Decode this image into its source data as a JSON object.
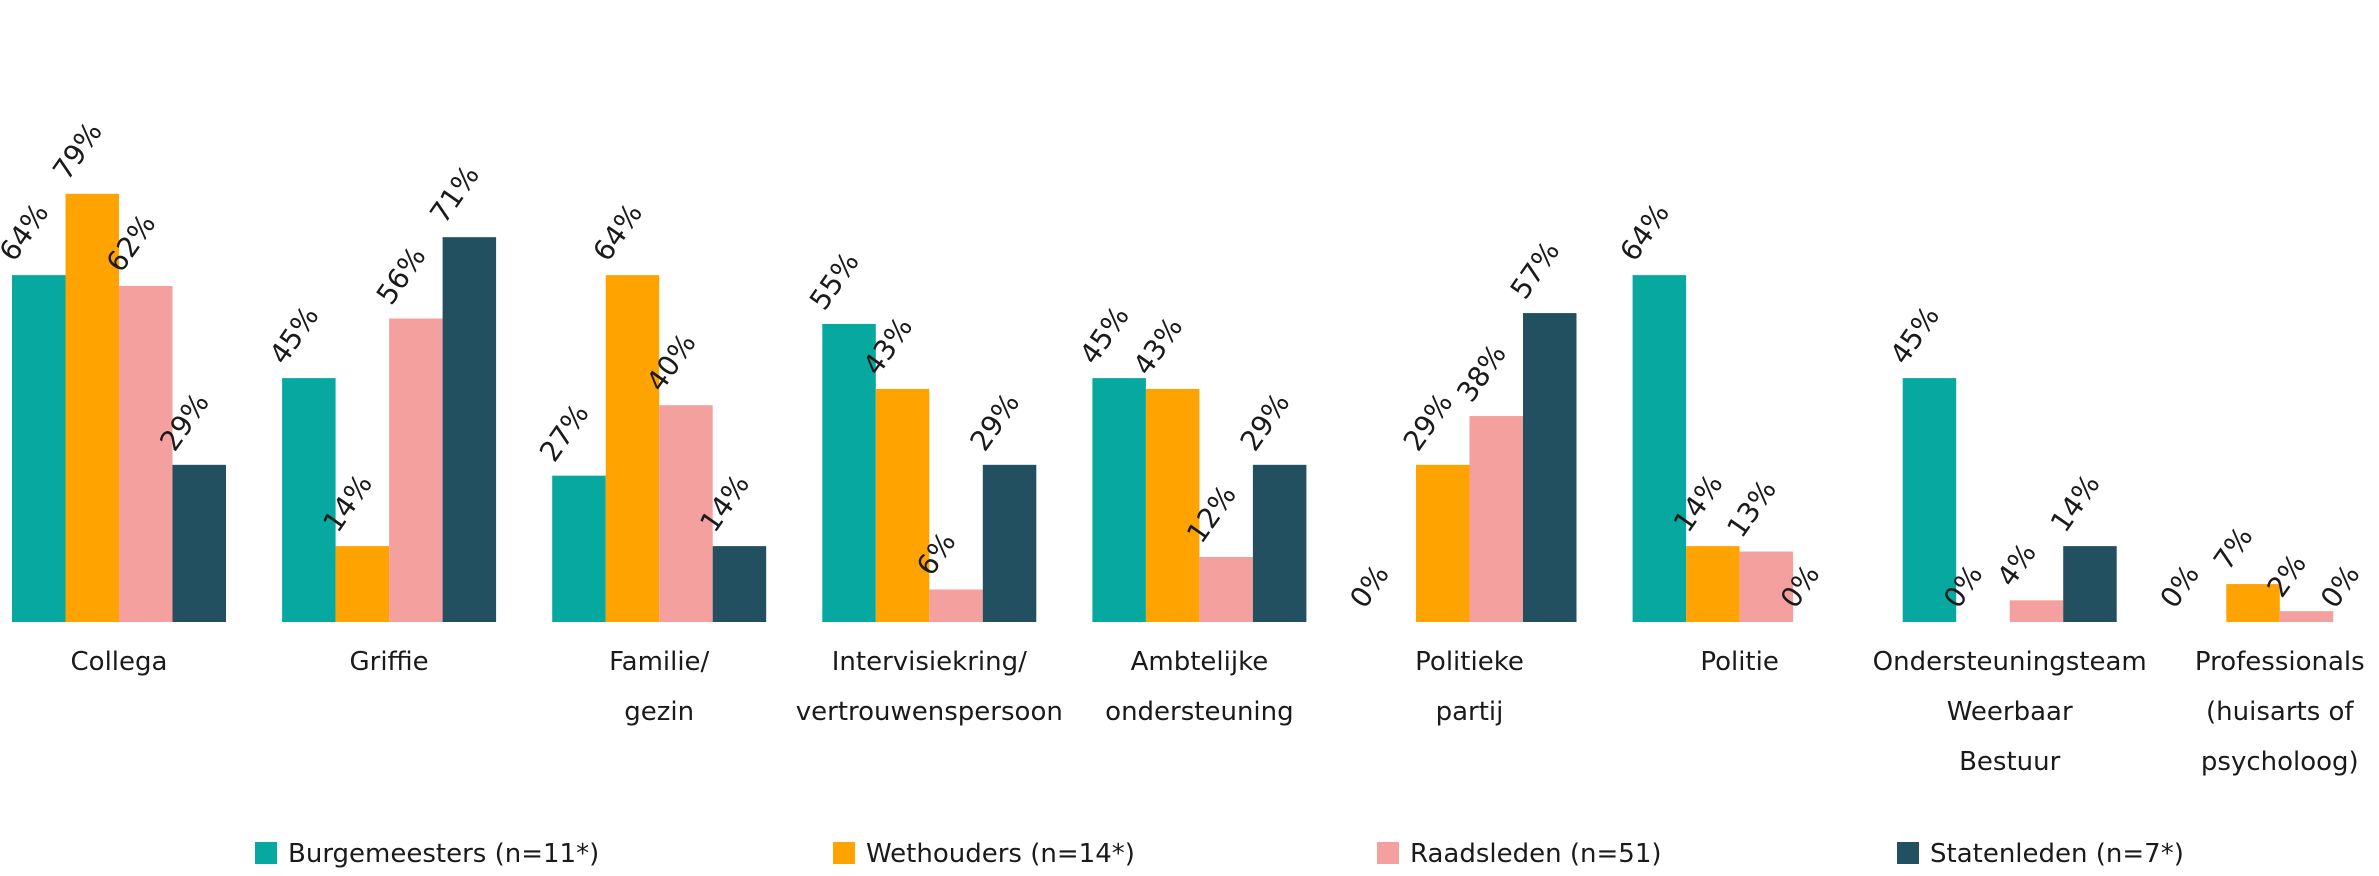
{
  "chart_data": {
    "type": "bar",
    "categories": [
      [
        "Collega"
      ],
      [
        "Griffie"
      ],
      [
        "Familie/",
        "gezin"
      ],
      [
        "Intervisiekring/",
        "vertrouwenspersoon"
      ],
      [
        "Ambtelijke",
        "ondersteuning"
      ],
      [
        "Politieke",
        "partij"
      ],
      [
        "Politie"
      ],
      [
        "Ondersteuningsteam",
        "Weerbaar",
        "Bestuur"
      ],
      [
        "Professionals",
        "(huisarts of",
        "psycholoog)"
      ]
    ],
    "series": [
      {
        "name": "Burgemeesters (n=11*)",
        "color": "#06a8a0",
        "values": [
          64,
          45,
          27,
          55,
          45,
          0,
          64,
          45,
          0
        ]
      },
      {
        "name": "Wethouders (n=14*)",
        "color": "#ffa300",
        "values": [
          79,
          14,
          64,
          43,
          43,
          29,
          14,
          0,
          7
        ]
      },
      {
        "name": "Raadsleden (n=51)",
        "color": "#f4a09e",
        "values": [
          62,
          56,
          40,
          6,
          12,
          38,
          13,
          4,
          2
        ]
      },
      {
        "name": "Statenleden (n=7*)",
        "color": "#235061",
        "values": [
          29,
          71,
          14,
          29,
          29,
          57,
          0,
          14,
          0
        ]
      }
    ],
    "value_suffix": "%",
    "ylim": [
      0,
      100
    ],
    "legend_position": "bottom",
    "grid": false
  }
}
